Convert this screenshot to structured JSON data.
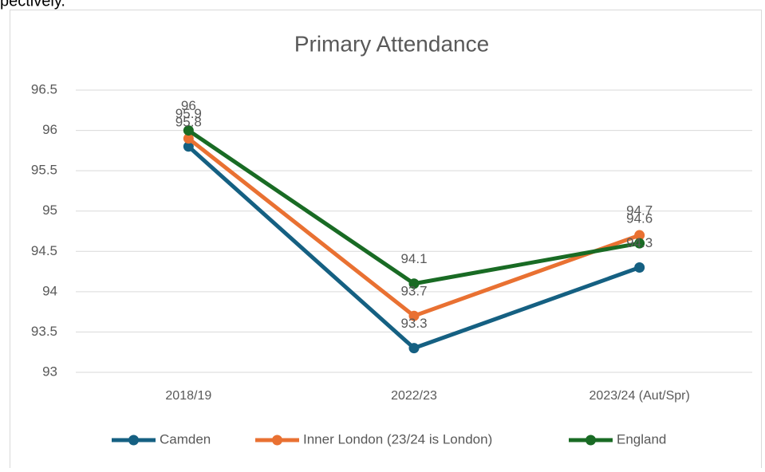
{
  "page_text": "pectively.",
  "chart_data": {
    "type": "line",
    "title": "Primary Attendance",
    "categories": [
      "2018/19",
      "2022/23",
      "2023/24 (Aut/Spr)"
    ],
    "series": [
      {
        "name": "Camden",
        "color": "#156082",
        "values": [
          95.8,
          93.3,
          94.3
        ]
      },
      {
        "name": "Inner London (23/24 is London)",
        "color": "#e97132",
        "values": [
          95.9,
          93.7,
          94.7
        ]
      },
      {
        "name": "England",
        "color": "#196b24",
        "values": [
          96,
          94.1,
          94.6
        ]
      }
    ],
    "ylim": [
      93,
      96.5
    ],
    "yticks": [
      93,
      93.5,
      94,
      94.5,
      95,
      95.5,
      96,
      96.5
    ],
    "grid": true,
    "legend": "bottom"
  }
}
